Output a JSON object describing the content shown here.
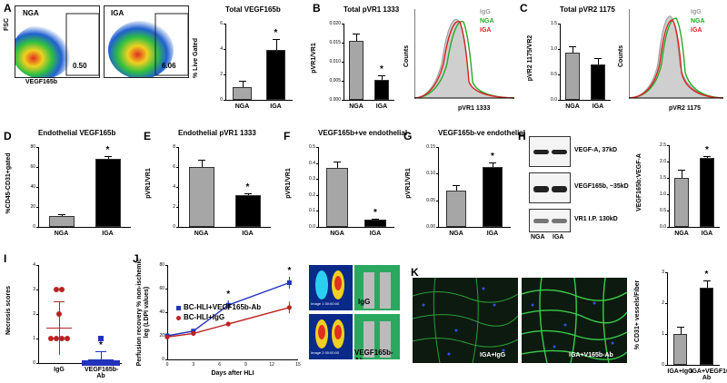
{
  "panels": {
    "A": {
      "label": "A",
      "flow_left_title": "NGA",
      "flow_left_value": "0.50",
      "flow_right_title": "IGA",
      "flow_right_value": "6.06",
      "flow_ylabel": "FSC",
      "flow_xlabel": "VEGF165b"
    },
    "B": {
      "label": "B"
    },
    "C": {
      "label": "C"
    },
    "D": {
      "label": "D"
    },
    "E": {
      "label": "E"
    },
    "F": {
      "label": "F"
    },
    "G": {
      "label": "G"
    },
    "H": {
      "label": "H",
      "blot_labels": [
        "VEGF-A, 37kD",
        "VEGF165b, ~35kD",
        "VR1 I.P. 130kD"
      ],
      "lane_labels": [
        "NGA",
        "IGA"
      ]
    },
    "I": {
      "label": "I"
    },
    "J": {
      "label": "J",
      "image_labels": [
        "IgG",
        "VEGF165b-Ab"
      ],
      "image_captions": [
        "Image 1 00:00:00",
        "Image 2 00:00:00"
      ]
    },
    "K": {
      "label": "K",
      "micro_labels": [
        "IGA+IgG",
        "IGA+V165b-Ab"
      ]
    }
  },
  "histograms": {
    "B": {
      "legend": [
        "IgG",
        "NGA",
        "IGA"
      ],
      "ylabel": "Counts",
      "xlabel": "pVR1 1333"
    },
    "C": {
      "legend": [
        "IgG",
        "NGA",
        "IGA"
      ],
      "ylabel": "Counts",
      "xlabel": "pVR2 1175"
    }
  },
  "colors": {
    "gray_bar": "#a6a6a6",
    "black_bar": "#000000",
    "igg": "#9a9a9a",
    "nga": "#22aa22",
    "iga": "#dd2222",
    "blue_series": "#2233bb",
    "red_series": "#bb2222"
  },
  "chart_data": [
    {
      "id": "A-bar",
      "type": "bar",
      "title": "Total VEGF165b",
      "ylabel": "% Live Gated",
      "categories": [
        "NGA",
        "IGA"
      ],
      "values": [
        1.0,
        3.9
      ],
      "errors": [
        0.5,
        0.9
      ],
      "ylim": [
        0,
        6
      ],
      "yticks": [
        "0",
        "2",
        "4",
        "6"
      ],
      "star": 1
    },
    {
      "id": "B-bar",
      "type": "bar",
      "title": "Total pVR1 1333",
      "ylabel": "pVR1/VR1",
      "categories": [
        "NGA",
        "IGA"
      ],
      "values": [
        0.0155,
        0.0052
      ],
      "errors": [
        0.002,
        0.0013
      ],
      "ylim": [
        0,
        0.02
      ],
      "yticks": [
        "0.000",
        "0.005",
        "0.010",
        "0.015",
        "0.020"
      ],
      "star": 1
    },
    {
      "id": "C-bar",
      "type": "bar",
      "title": "Total pVR2 1175",
      "ylabel": "pVR2 1175/VR2",
      "categories": [
        "NGA",
        "IGA"
      ],
      "values": [
        0.93,
        0.7
      ],
      "errors": [
        0.12,
        0.12
      ],
      "ylim": [
        0,
        1.5
      ],
      "yticks": [
        "0.0",
        "0.5",
        "1.0",
        "1.5"
      ],
      "star": null
    },
    {
      "id": "D",
      "type": "bar",
      "title": "Endothelial VEGF165b",
      "ylabel": "%CD45-CD31+gated",
      "categories": [
        "NGA",
        "IGA"
      ],
      "values": [
        11,
        68
      ],
      "errors": [
        2,
        3
      ],
      "ylim": [
        0,
        80
      ],
      "yticks": [
        "0",
        "20",
        "40",
        "60",
        "80"
      ],
      "star": 1
    },
    {
      "id": "E",
      "type": "bar",
      "title": "Endothelial pVR1 1333",
      "ylabel": "pVR1/VR1",
      "categories": [
        "NGA",
        "IGA"
      ],
      "values": [
        6.0,
        3.2
      ],
      "errors": [
        0.7,
        0.2
      ],
      "ylim": [
        0,
        8
      ],
      "yticks": [
        "0",
        "2",
        "4",
        "6",
        "8"
      ],
      "star": 1
    },
    {
      "id": "F",
      "type": "bar",
      "title": "VEGF165b+ve endothelial",
      "ylabel": "pVR1/VR1",
      "categories": [
        "NGA",
        "IGA"
      ],
      "values": [
        0.37,
        0.045
      ],
      "errors": [
        0.04,
        0.005
      ],
      "ylim": [
        0,
        0.5
      ],
      "yticks": [
        "0.0",
        "0.1",
        "0.2",
        "0.3",
        "0.4",
        "0.5"
      ],
      "star": 1
    },
    {
      "id": "G",
      "type": "bar",
      "title": "VEGF165b-ve endothelial",
      "ylabel": "pVR1/VR1",
      "categories": [
        "NGA",
        "IGA"
      ],
      "values": [
        0.069,
        0.112
      ],
      "errors": [
        0.009,
        0.009
      ],
      "ylim": [
        0,
        0.15
      ],
      "yticks": [
        "0.00",
        "0.05",
        "0.10",
        "0.15"
      ],
      "star": 1
    },
    {
      "id": "H-bar",
      "type": "bar",
      "title": "",
      "ylabel": "VEGF165b:VEGF-A",
      "categories": [
        "NGA",
        "IGA"
      ],
      "values": [
        1.5,
        2.1
      ],
      "errors": [
        0.25,
        0.08
      ],
      "ylim": [
        0,
        2.5
      ],
      "yticks": [
        "0.0",
        "0.5",
        "1.0",
        "1.5",
        "2.0",
        "2.5"
      ],
      "star": 1
    },
    {
      "id": "I",
      "type": "scatter",
      "title": "",
      "ylabel": "Necrosis scores",
      "categories": [
        "IgG",
        "VEGF165b-Ab"
      ],
      "points": [
        [
          3,
          3,
          2,
          1,
          1,
          1,
          1
        ],
        [
          1,
          0,
          0,
          0,
          0,
          0,
          0,
          0
        ]
      ],
      "means": [
        1.43,
        0.13
      ],
      "sds": [
        1.1,
        0.35
      ],
      "ylim": [
        0,
        4
      ],
      "yticks": [
        "0",
        "1",
        "2",
        "3",
        "4"
      ],
      "star": 1
    },
    {
      "id": "J",
      "type": "line",
      "title": "",
      "ylabel": "Perfusion recovery % non-ischemic leg (LDPI values)",
      "xlabel": "Days after HLI",
      "xlim": [
        0,
        15
      ],
      "ylim": [
        0,
        80
      ],
      "xticks": [
        "0",
        "3",
        "6",
        "9",
        "12",
        "15"
      ],
      "yticks": [
        "0",
        "20",
        "40",
        "60",
        "80"
      ],
      "x": [
        0,
        3,
        7,
        14
      ],
      "series": [
        {
          "name": "BC-HLI+VEGF165b-Ab",
          "values": [
            20,
            24,
            46,
            65
          ],
          "errors": [
            2,
            2,
            4,
            5
          ],
          "color": "#2233bb"
        },
        {
          "name": "BC-HLI+IgG",
          "values": [
            19,
            22,
            30,
            44
          ],
          "errors": [
            2,
            2,
            2,
            5
          ],
          "color": "#bb2222"
        }
      ],
      "star_x": [
        7,
        14
      ]
    },
    {
      "id": "K-bar",
      "type": "bar",
      "title": "",
      "ylabel": "% CD31+ vessels/Fiber",
      "categories": [
        "IGA+IgG",
        "IGA+VEGF165b-Ab"
      ],
      "values": [
        1.0,
        2.5
      ],
      "errors": [
        0.25,
        0.25
      ],
      "ylim": [
        0,
        3
      ],
      "yticks": [
        "0",
        "1",
        "2",
        "3"
      ],
      "star": 1
    }
  ]
}
